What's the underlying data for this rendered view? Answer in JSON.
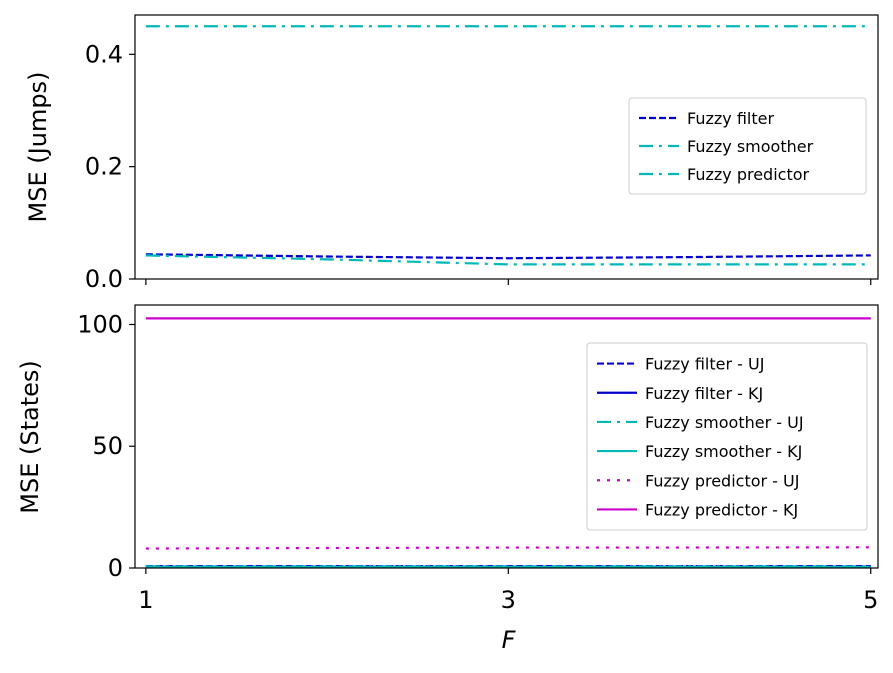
{
  "chart_data": [
    {
      "type": "line",
      "ylabel": "MSE (Jumps)",
      "xlabel": "",
      "x": [
        1,
        2,
        3,
        4,
        5
      ],
      "xticks": [
        1,
        3,
        5
      ],
      "xtick_labels": [
        "",
        "",
        ""
      ],
      "xlim": [
        0.94,
        5.04
      ],
      "ylim": [
        0.0,
        0.47
      ],
      "yticks": [
        0.0,
        0.2,
        0.4
      ],
      "ytick_labels": [
        "0.0",
        "0.2",
        "0.4"
      ],
      "legend_position": "center-right",
      "series": [
        {
          "name": "Fuzzy filter",
          "values": [
            0.044,
            0.04,
            0.037,
            0.039,
            0.042
          ],
          "color": "#0000cc",
          "style": "dashed"
        },
        {
          "name": "Fuzzy smoother",
          "values": [
            0.042,
            0.035,
            0.026,
            0.026,
            0.026
          ],
          "color": "#00b8b8",
          "style": "dashdot"
        },
        {
          "name": "Fuzzy predictor",
          "values": [
            0.45,
            0.45,
            0.45,
            0.45,
            0.45
          ],
          "color": "#00b8b8",
          "style": "dashdot"
        }
      ]
    },
    {
      "type": "line",
      "ylabel": "MSE (States)",
      "xlabel": "F",
      "x": [
        1,
        2,
        3,
        4,
        5
      ],
      "xticks": [
        1,
        3,
        5
      ],
      "xtick_labels": [
        "1",
        "3",
        "5"
      ],
      "xlim": [
        0.94,
        5.04
      ],
      "ylim": [
        0,
        108
      ],
      "yticks": [
        0,
        50,
        100
      ],
      "ytick_labels": [
        "0",
        "50",
        "100"
      ],
      "legend_position": "right",
      "series": [
        {
          "name": "Fuzzy filter - UJ",
          "values": [
            0.8,
            0.8,
            0.8,
            0.8,
            0.8
          ],
          "color": "#0000cc",
          "style": "dashed"
        },
        {
          "name": "Fuzzy filter - KJ",
          "values": [
            0.5,
            0.5,
            0.5,
            0.5,
            0.5
          ],
          "color": "#0000cc",
          "style": "solid"
        },
        {
          "name": "Fuzzy smoother - UJ",
          "values": [
            0.7,
            0.7,
            0.7,
            0.7,
            0.7
          ],
          "color": "#00b8b8",
          "style": "dashdot"
        },
        {
          "name": "Fuzzy smoother - KJ",
          "values": [
            0.4,
            0.4,
            0.4,
            0.4,
            0.4
          ],
          "color": "#00b8b8",
          "style": "solid"
        },
        {
          "name": "Fuzzy predictor - UJ",
          "values": [
            8.0,
            8.2,
            8.4,
            8.4,
            8.5
          ],
          "color": "#cc00cc",
          "style": "dotted"
        },
        {
          "name": "Fuzzy predictor - KJ",
          "values": [
            102.5,
            102.5,
            102.5,
            102.5,
            102.5
          ],
          "color": "#cc00cc",
          "style": "solid"
        }
      ]
    }
  ]
}
